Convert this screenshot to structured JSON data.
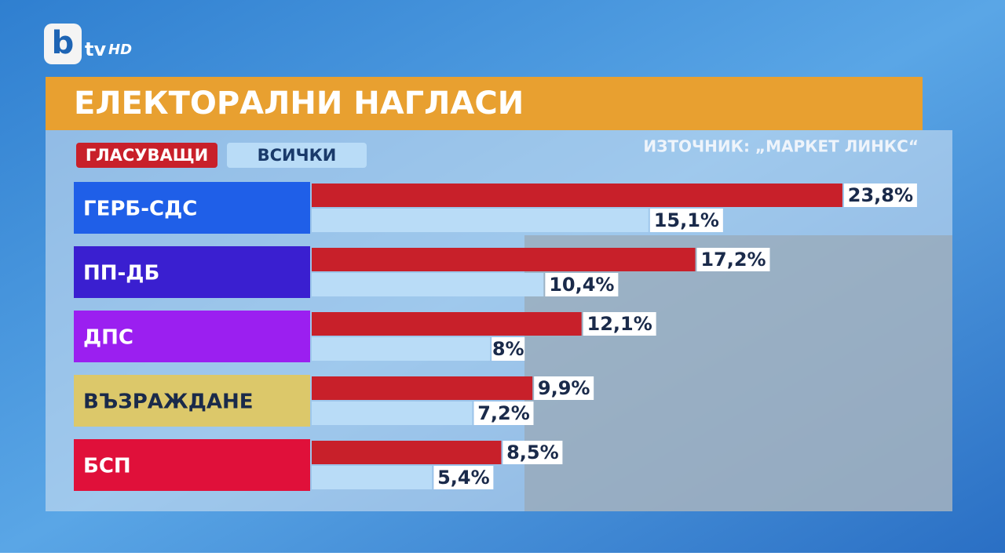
{
  "logo": {
    "b": "b",
    "tv": "tv",
    "hd": "HD"
  },
  "chart_data": {
    "type": "bar",
    "orientation": "horizontal",
    "title": "ЕЛЕКТОРАЛНИ НАГЛАСИ",
    "source": "ИЗТОЧНИК: „МАРКЕТ ЛИНКС“",
    "categories": [
      "ГЕРБ-СДС",
      "ПП-ДБ",
      "ДПС",
      "ВЪЗРАЖДАНЕ",
      "БСП"
    ],
    "category_colors": [
      "#1f5fe8",
      "#3a1fd0",
      "#9b1ff0",
      "#dcc86a",
      "#e0103a"
    ],
    "category_text_colors": [
      "#ffffff",
      "#ffffff",
      "#ffffff",
      "#1a2a4a",
      "#ffffff"
    ],
    "series": [
      {
        "name": "ГЛАСУВАЩИ",
        "color": "#c8202a",
        "values": [
          23.8,
          17.2,
          12.1,
          9.9,
          8.5
        ],
        "value_labels": [
          "23,8%",
          "17,2%",
          "12,1%",
          "9,9%",
          "8,5%"
        ]
      },
      {
        "name": "ВСИЧКИ",
        "color": "#b9dcf7",
        "values": [
          15.1,
          10.4,
          8,
          7.2,
          5.4
        ],
        "value_labels": [
          "15,1%",
          "10,4%",
          "8%",
          "7,2%",
          "5,4%"
        ]
      }
    ]
  }
}
